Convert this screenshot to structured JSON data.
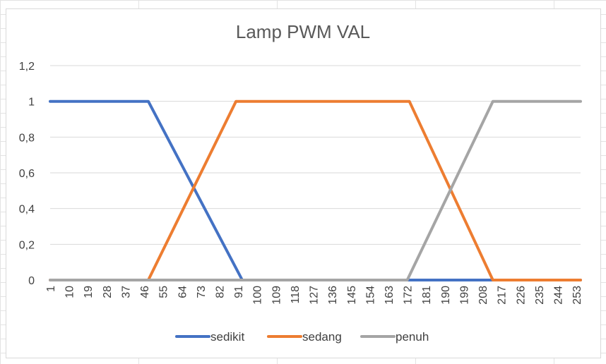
{
  "chart_data": {
    "type": "line",
    "title": "Lamp PWM VAL",
    "xlabel": "",
    "ylabel": "",
    "x_tick_labels": [
      "1",
      "10",
      "19",
      "28",
      "37",
      "46",
      "55",
      "64",
      "73",
      "82",
      "91",
      "100",
      "109",
      "118",
      "127",
      "136",
      "145",
      "154",
      "163",
      "172",
      "181",
      "190",
      "199",
      "208",
      "217",
      "226",
      "235",
      "244",
      "253"
    ],
    "x_range": [
      1,
      255
    ],
    "y_tick_labels": [
      "0",
      "0,2",
      "0,4",
      "0,6",
      "0,8",
      "1",
      "1,2"
    ],
    "ylim": [
      0,
      1.2
    ],
    "grid": "horizontal",
    "legend_position": "bottom",
    "series": [
      {
        "name": "sedikit",
        "color": "#4472C4",
        "points": [
          [
            1,
            1
          ],
          [
            48,
            1
          ],
          [
            93,
            0
          ],
          [
            255,
            0
          ]
        ]
      },
      {
        "name": "sedang",
        "color": "#ED7D31",
        "points": [
          [
            1,
            0
          ],
          [
            48,
            0
          ],
          [
            90,
            1
          ],
          [
            173,
            1
          ],
          [
            213,
            0
          ],
          [
            255,
            0
          ]
        ]
      },
      {
        "name": "penuh",
        "color": "#A5A5A5",
        "points": [
          [
            1,
            0
          ],
          [
            172,
            0
          ],
          [
            213,
            1
          ],
          [
            255,
            1
          ]
        ]
      }
    ]
  }
}
